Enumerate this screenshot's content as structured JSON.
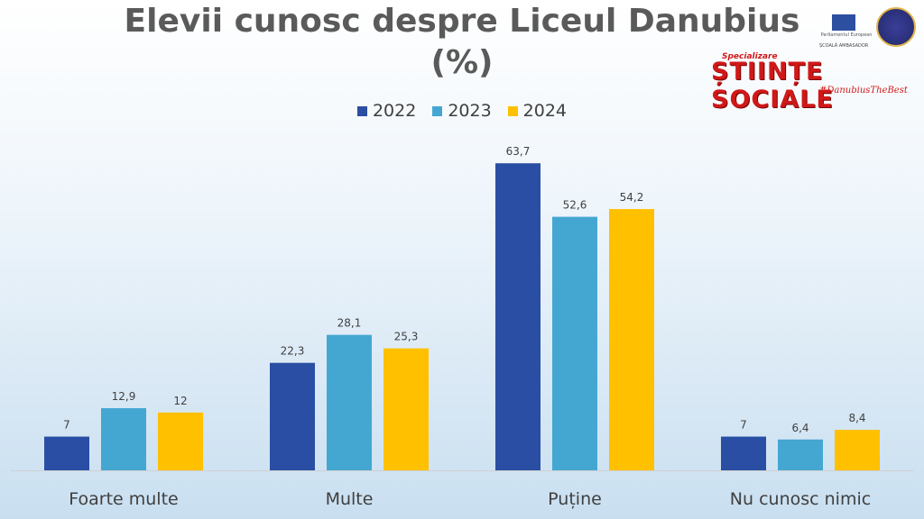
{
  "chart_data": {
    "type": "bar",
    "title": "Elevii cunosc despre Liceul Danubius",
    "subtitle": "(%)",
    "categories": [
      "Foarte multe",
      "Multe",
      "Puține",
      "Nu cunosc nimic"
    ],
    "series": [
      {
        "name": "2022",
        "color": "#2a4ea3",
        "values": [
          7,
          22.3,
          63.7,
          7
        ],
        "labels": [
          "7",
          "22,3",
          "63,7",
          "7"
        ]
      },
      {
        "name": "2023",
        "color": "#44a7d2",
        "values": [
          12.9,
          28.1,
          52.6,
          6.4
        ],
        "labels": [
          "12,9",
          "28,1",
          "52,6",
          "6,4"
        ]
      },
      {
        "name": "2024",
        "color": "#ffc000",
        "values": [
          12,
          25.3,
          54.2,
          8.4
        ],
        "labels": [
          "12",
          "25,3",
          "54,2",
          "8,4"
        ]
      }
    ],
    "xlabel": "",
    "ylabel": "",
    "ylim": [
      0,
      70
    ],
    "grid": false,
    "legend": "top-center"
  },
  "logos": {
    "eu_text": "Parliamentul European",
    "ambassador_text": "ȘCOALĂ AMBASADOR",
    "specialization_label": "Specializare",
    "specialization_title": "ȘTIINȚE SOCIALE",
    "hashtag": "#DanubiusTheBest"
  }
}
